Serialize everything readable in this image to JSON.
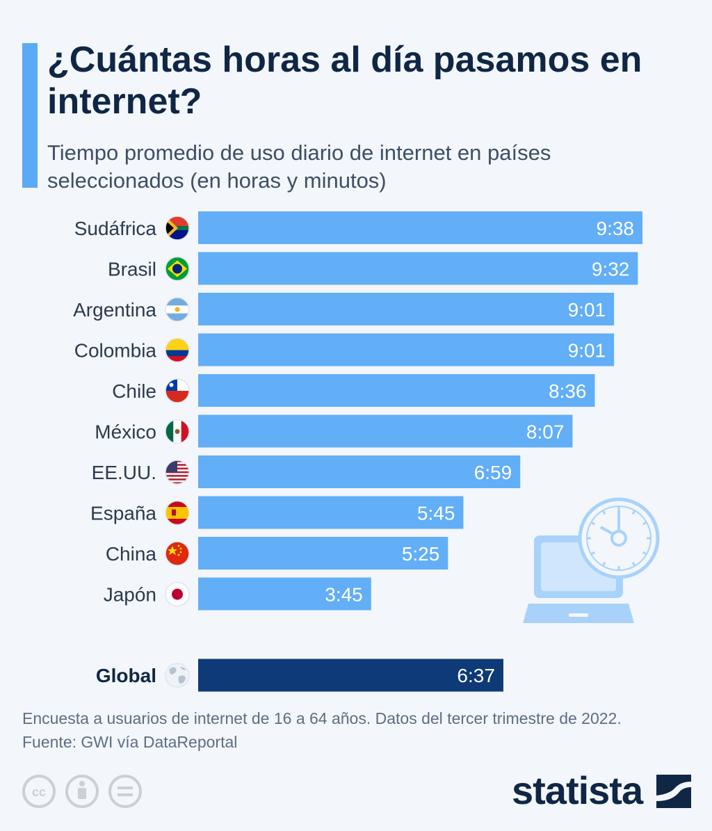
{
  "header": {
    "title": "¿Cuántas horas al día pasamos en internet?",
    "subtitle": "Tiempo promedio de uso diario de internet en países seleccionados (en horas y minutos)"
  },
  "colors": {
    "accent": "#5aaaf5",
    "bar": "#62aef7",
    "global_bar": "#0e3a78",
    "title": "#0f2744",
    "illustration": "#a8d2fa"
  },
  "chart_data": {
    "type": "bar",
    "orientation": "horizontal",
    "value_unit": "hours:minutes",
    "categories": [
      "Sudáfrica",
      "Brasil",
      "Argentina",
      "Colombia",
      "Chile",
      "México",
      "EE.UU.",
      "España",
      "China",
      "Japón",
      "Global"
    ],
    "values": [
      9.633,
      9.533,
      9.017,
      9.017,
      8.6,
      8.117,
      6.983,
      5.75,
      5.417,
      3.75,
      6.617
    ],
    "labels": [
      "9:38",
      "9:32",
      "9:01",
      "9:01",
      "8:36",
      "8:07",
      "6:59",
      "5:45",
      "5:25",
      "3:45",
      "6:37"
    ],
    "flags": [
      "south-africa-flag-icon",
      "brazil-flag-icon",
      "argentina-flag-icon",
      "colombia-flag-icon",
      "chile-flag-icon",
      "mexico-flag-icon",
      "usa-flag-icon",
      "spain-flag-icon",
      "china-flag-icon",
      "japan-flag-icon",
      "globe-icon"
    ],
    "highlight": "Global",
    "xlim": [
      0,
      9.633
    ],
    "grid": false,
    "legend": "none"
  },
  "illustration": {
    "icons": [
      "laptop-icon",
      "stopwatch-icon"
    ]
  },
  "footer": {
    "note": "Encuesta a usuarios de internet de 16 a 64 años. Datos del tercer trimestre de 2022.",
    "source": "Fuente: GWI vía DataReportal",
    "license_icons": [
      "creative-commons-icon",
      "attribution-icon",
      "no-derivatives-icon"
    ],
    "brand": "statista"
  }
}
